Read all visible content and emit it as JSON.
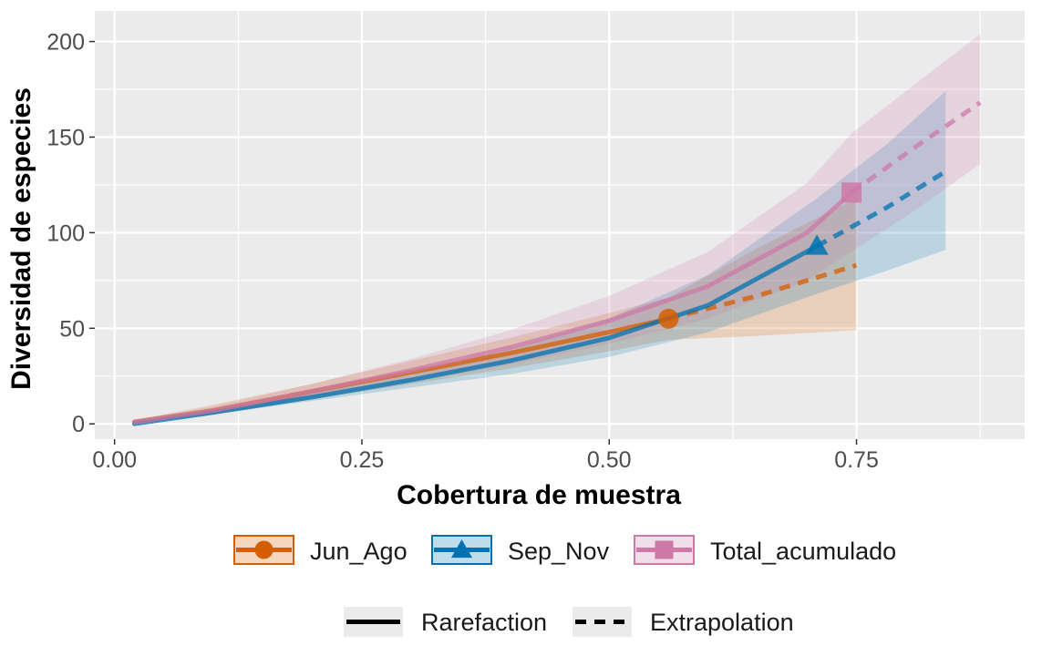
{
  "chart_data": {
    "type": "line",
    "xlabel": "Cobertura de muestra",
    "ylabel": "Diversidad de especies",
    "xlim": [
      -0.02,
      0.92
    ],
    "ylim": [
      -8,
      216
    ],
    "x_ticks": [
      0.0,
      0.25,
      0.5,
      0.75
    ],
    "x_tick_labels": [
      "0.00",
      "0.25",
      "0.50",
      "0.75"
    ],
    "y_ticks": [
      0,
      50,
      100,
      150,
      200
    ],
    "y_tick_labels": [
      "0",
      "50",
      "100",
      "150",
      "200"
    ],
    "grid": true,
    "legend_position": "bottom",
    "series": [
      {
        "name": "Jun_Ago",
        "color": "#D55E00",
        "marker": "circle",
        "observed": {
          "x": 0.56,
          "y": 55
        },
        "rarefaction": [
          [
            0.02,
            1
          ],
          [
            0.1,
            7
          ],
          [
            0.2,
            17
          ],
          [
            0.3,
            27
          ],
          [
            0.4,
            37
          ],
          [
            0.5,
            48
          ],
          [
            0.56,
            55
          ]
        ],
        "rarefaction_lower": [
          [
            0.02,
            0
          ],
          [
            0.1,
            5
          ],
          [
            0.2,
            13
          ],
          [
            0.3,
            21
          ],
          [
            0.4,
            29
          ],
          [
            0.5,
            38
          ],
          [
            0.56,
            44
          ]
        ],
        "rarefaction_upper": [
          [
            0.02,
            2
          ],
          [
            0.1,
            10
          ],
          [
            0.2,
            21
          ],
          [
            0.3,
            33
          ],
          [
            0.4,
            45
          ],
          [
            0.5,
            58
          ],
          [
            0.56,
            66
          ]
        ],
        "extrapolation": [
          [
            0.56,
            55
          ],
          [
            0.65,
            67
          ],
          [
            0.75,
            83
          ]
        ],
        "extrapolation_lower": [
          [
            0.56,
            44
          ],
          [
            0.65,
            46
          ],
          [
            0.75,
            49
          ]
        ],
        "extrapolation_upper": [
          [
            0.56,
            66
          ],
          [
            0.65,
            92
          ],
          [
            0.75,
            118
          ]
        ]
      },
      {
        "name": "Sep_Nov",
        "color": "#0072B2",
        "marker": "triangle",
        "observed": {
          "x": 0.71,
          "y": 93
        },
        "rarefaction": [
          [
            0.02,
            0
          ],
          [
            0.1,
            6
          ],
          [
            0.2,
            14
          ],
          [
            0.3,
            23
          ],
          [
            0.4,
            33
          ],
          [
            0.5,
            45
          ],
          [
            0.6,
            62
          ],
          [
            0.71,
            93
          ]
        ],
        "rarefaction_lower": [
          [
            0.02,
            0
          ],
          [
            0.1,
            5
          ],
          [
            0.2,
            12
          ],
          [
            0.3,
            19
          ],
          [
            0.4,
            26
          ],
          [
            0.5,
            35
          ],
          [
            0.6,
            48
          ],
          [
            0.71,
            68
          ]
        ],
        "rarefaction_upper": [
          [
            0.02,
            1
          ],
          [
            0.1,
            8
          ],
          [
            0.2,
            17
          ],
          [
            0.3,
            27
          ],
          [
            0.4,
            39
          ],
          [
            0.5,
            55
          ],
          [
            0.6,
            78
          ],
          [
            0.71,
            118
          ]
        ],
        "extrapolation": [
          [
            0.71,
            93
          ],
          [
            0.78,
            113
          ],
          [
            0.84,
            132
          ]
        ],
        "extrapolation_lower": [
          [
            0.71,
            68
          ],
          [
            0.78,
            80
          ],
          [
            0.84,
            91
          ]
        ],
        "extrapolation_upper": [
          [
            0.71,
            118
          ],
          [
            0.78,
            146
          ],
          [
            0.84,
            174
          ]
        ]
      },
      {
        "name": "Total_acumulado",
        "color": "#CC79A7",
        "marker": "square",
        "observed": {
          "x": 0.745,
          "y": 121
        },
        "rarefaction": [
          [
            0.02,
            1
          ],
          [
            0.1,
            7
          ],
          [
            0.2,
            17
          ],
          [
            0.3,
            28
          ],
          [
            0.4,
            40
          ],
          [
            0.5,
            54
          ],
          [
            0.6,
            72
          ],
          [
            0.7,
            100
          ],
          [
            0.745,
            121
          ]
        ],
        "rarefaction_lower": [
          [
            0.02,
            0
          ],
          [
            0.1,
            5
          ],
          [
            0.2,
            13
          ],
          [
            0.3,
            22
          ],
          [
            0.4,
            31
          ],
          [
            0.5,
            42
          ],
          [
            0.6,
            55
          ],
          [
            0.7,
            75
          ],
          [
            0.745,
            90
          ]
        ],
        "rarefaction_upper": [
          [
            0.02,
            2
          ],
          [
            0.1,
            9
          ],
          [
            0.2,
            21
          ],
          [
            0.3,
            34
          ],
          [
            0.4,
            49
          ],
          [
            0.5,
            67
          ],
          [
            0.6,
            90
          ],
          [
            0.7,
            126
          ],
          [
            0.745,
            152
          ]
        ],
        "extrapolation": [
          [
            0.745,
            121
          ],
          [
            0.81,
            145
          ],
          [
            0.875,
            168
          ]
        ],
        "extrapolation_lower": [
          [
            0.745,
            90
          ],
          [
            0.81,
            112
          ],
          [
            0.875,
            136
          ]
        ],
        "extrapolation_upper": [
          [
            0.745,
            152
          ],
          [
            0.81,
            178
          ],
          [
            0.875,
            204
          ]
        ]
      }
    ]
  },
  "legend": {
    "groups": [
      {
        "label": "Jun_Ago",
        "color": "#D55E00",
        "marker": "circle"
      },
      {
        "label": "Sep_Nov",
        "color": "#0072B2",
        "marker": "triangle"
      },
      {
        "label": "Total_acumulado",
        "color": "#CC79A7",
        "marker": "square"
      }
    ],
    "methods": [
      {
        "label": "Rarefaction",
        "style": "solid"
      },
      {
        "label": "Extrapolation",
        "style": "dashed"
      }
    ]
  }
}
